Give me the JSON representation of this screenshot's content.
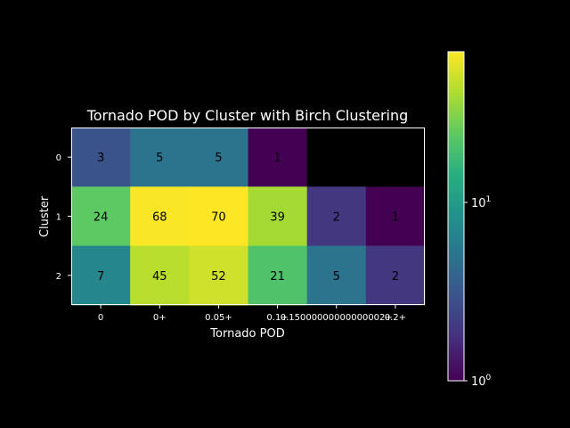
{
  "chart_data": {
    "type": "heatmap",
    "title": "Tornado POD by Cluster with Birch Clustering",
    "xlabel": "Tornado POD",
    "ylabel": "Cluster",
    "x_tick_labels": [
      "0",
      "0+",
      "0.05+",
      "0.1+",
      "0.15000000000000002+",
      "0.2+"
    ],
    "y_tick_labels": [
      "0",
      "1",
      "2"
    ],
    "values": [
      [
        3,
        5,
        5,
        1,
        null,
        null
      ],
      [
        24,
        68,
        70,
        39,
        2,
        1
      ],
      [
        7,
        45,
        52,
        21,
        5,
        2
      ]
    ],
    "colorscale": "viridis",
    "color_scale_type": "log",
    "color_range": [
      1,
      70
    ],
    "colorbar": {
      "ticks": [
        {
          "base": "10",
          "exp": "0",
          "value": 1
        },
        {
          "base": "10",
          "exp": "1",
          "value": 10
        }
      ]
    },
    "missing_color": "#000000"
  }
}
